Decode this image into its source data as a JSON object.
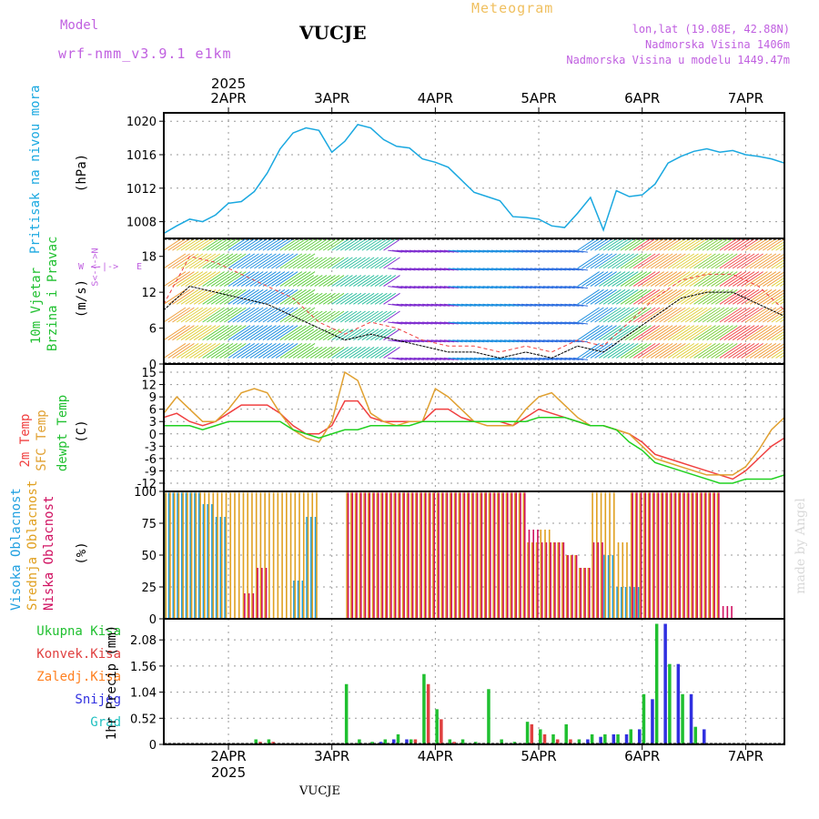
{
  "header": {
    "model_label": "Model",
    "model_name": "wrf-nmm_v3.9.1 e1km",
    "location_title": "VUCJE",
    "product": "Meteogram",
    "coords": "lon,lat (19.08E, 42.88N)",
    "elevation": "Nadmorska Visina 1406m",
    "model_elevation": "Nadmorska Visina u modelu 1449.47m",
    "credit": "made by Angel",
    "bottom_title": "VUCJE"
  },
  "time_axis": {
    "year": "2025",
    "day_labels": [
      "2APR",
      "3APR",
      "4APR",
      "5APR",
      "6APR",
      "7APR"
    ]
  },
  "colors": {
    "pressure": "#1aa8e0",
    "wind_speed": "#000000",
    "temp_2m": "#f04040",
    "temp_sfc": "#e0a030",
    "dewpoint": "#20d020",
    "cloud_high": "#20a0e0",
    "cloud_mid": "#e0a020",
    "cloud_low": "#d01060",
    "precip_total": "#20c030",
    "precip_conv": "#e04040",
    "precip_frozen": "#ff8020",
    "precip_snow": "#3030e0",
    "precip_hail": "#20c0c0",
    "wind_compass": "#c060e0"
  },
  "panel_labels": {
    "pressure_name": "Pritisak na nivou mora",
    "pressure_unit": "(hPa)",
    "wind_name_1": "10m Vjetar",
    "wind_name_2": "Brzina i Pravac",
    "wind_unit": "(m/s)",
    "compass_n": "N",
    "compass_w": "W",
    "compass_e": "E",
    "compass_s": "S",
    "temp_2m": "2m Temp",
    "temp_sfc": "SFC Temp",
    "dewpoint": "dewpt Temp",
    "temp_unit": "(C)",
    "cloud_high": "Visoka Oblacnost",
    "cloud_mid": "Srednja Oblacnost",
    "cloud_low": "Niska Oblacnost",
    "cloud_unit": "(%)",
    "precip_total": "Ukupna Kisa",
    "precip_conv": "Konvek.Kisa",
    "precip_frozen": "Zaledj.Kisa",
    "precip_snow": "Snijeg",
    "precip_hail": "Grad",
    "precip_unit": "1hr Precip (mm)"
  },
  "chart_data": [
    {
      "type": "line",
      "name": "pressure",
      "ylim": [
        1006,
        1021
      ],
      "yticks": [
        "1008",
        "1012",
        "1016",
        "1020"
      ],
      "x_hours": [
        0,
        3,
        6,
        9,
        12,
        15,
        18,
        21,
        24,
        27,
        30,
        33,
        36,
        39,
        42,
        45,
        48,
        51,
        54,
        57,
        60,
        63,
        66,
        69,
        72,
        75,
        78,
        81,
        84,
        87,
        90,
        93,
        96,
        99,
        102,
        105,
        108,
        111,
        114,
        117,
        120,
        123,
        126,
        129,
        132,
        135,
        138,
        141,
        144
      ],
      "series": [
        {
          "values": [
            1006.6,
            1007.5,
            1008.3,
            1008.0,
            1008.8,
            1010.2,
            1010.4,
            1011.6,
            1013.8,
            1016.7,
            1018.6,
            1019.2,
            1018.9,
            1016.3,
            1017.6,
            1019.6,
            1019.2,
            1017.8,
            1017.0,
            1016.8,
            1015.5,
            1015.1,
            1014.5,
            1013.0,
            1011.5,
            1011.0,
            1010.5,
            1008.6,
            1008.5,
            1008.3,
            1007.5,
            1007.3,
            1009.0,
            1010.9,
            1007.0,
            1011.7,
            1011.0,
            1011.2,
            1012.5,
            1015.0,
            1015.8,
            1016.4,
            1016.7,
            1016.3,
            1016.5,
            1016.0,
            1015.8,
            1015.5,
            1015.0
          ]
        }
      ]
    },
    {
      "type": "line",
      "name": "wind_speed",
      "ylim": [
        0,
        21
      ],
      "yticks": [
        "0",
        "6",
        "12",
        "18"
      ],
      "x_hours": [
        0,
        6,
        12,
        18,
        24,
        30,
        36,
        42,
        48,
        54,
        60,
        66,
        72,
        78,
        84,
        90,
        96,
        102,
        108,
        114,
        120,
        126,
        132,
        138,
        144
      ],
      "series": [
        {
          "name": "speed",
          "values": [
            9,
            13,
            12,
            11,
            10,
            8,
            6,
            4,
            5,
            4,
            3,
            2,
            2,
            1,
            2,
            1,
            3,
            2,
            5,
            8,
            11,
            12,
            12,
            10,
            8
          ]
        },
        {
          "name": "gust",
          "values": [
            10,
            18,
            17,
            15,
            13,
            11,
            7,
            5,
            7,
            6,
            4,
            3,
            3,
            2,
            3,
            2,
            4,
            3,
            7,
            11,
            14,
            15,
            15,
            13,
            9
          ]
        }
      ]
    },
    {
      "type": "line",
      "name": "temperature",
      "ylim": [
        -14,
        17
      ],
      "yticks": [
        "-12",
        "-9",
        "-6",
        "-3",
        "0",
        "3",
        "6",
        "9",
        "12",
        "15"
      ],
      "x_hours": [
        0,
        3,
        6,
        9,
        12,
        15,
        18,
        21,
        24,
        27,
        30,
        33,
        36,
        39,
        42,
        45,
        48,
        51,
        54,
        57,
        60,
        63,
        66,
        69,
        72,
        75,
        78,
        81,
        84,
        87,
        90,
        93,
        96,
        99,
        102,
        105,
        108,
        111,
        114,
        117,
        120,
        123,
        126,
        129,
        132,
        135,
        138,
        141,
        144
      ],
      "series": [
        {
          "name": "2m Temp",
          "values": [
            4,
            5,
            3,
            2,
            3,
            5,
            7,
            7,
            7,
            5,
            2,
            0,
            0,
            2,
            8,
            8,
            4,
            3,
            3,
            3,
            3,
            6,
            6,
            4,
            3,
            3,
            3,
            2,
            4,
            6,
            5,
            4,
            3,
            2,
            2,
            1,
            0,
            -2,
            -5,
            -6,
            -7,
            -8,
            -9,
            -10,
            -11,
            -9,
            -6,
            -3,
            -1
          ]
        },
        {
          "name": "SFC Temp",
          "values": [
            5,
            9,
            6,
            3,
            3,
            6,
            10,
            11,
            10,
            5,
            1,
            -1,
            -2,
            3,
            15,
            13,
            5,
            3,
            2,
            3,
            3,
            11,
            9,
            6,
            3,
            2,
            2,
            2,
            6,
            9,
            10,
            7,
            4,
            2,
            2,
            1,
            0,
            -3,
            -6,
            -7,
            -8,
            -9,
            -10,
            -10,
            -10,
            -8,
            -4,
            1,
            4
          ]
        },
        {
          "name": "dewpt Temp",
          "values": [
            2,
            2,
            2,
            1,
            2,
            3,
            3,
            3,
            3,
            3,
            1,
            0,
            -1,
            0,
            1,
            1,
            2,
            2,
            2,
            2,
            3,
            3,
            3,
            3,
            3,
            3,
            3,
            3,
            3,
            4,
            4,
            4,
            3,
            2,
            2,
            1,
            -2,
            -4,
            -7,
            -8,
            -9,
            -10,
            -11,
            -12,
            -12,
            -11,
            -11,
            -11,
            -10
          ]
        }
      ]
    },
    {
      "type": "bar",
      "name": "clouds",
      "ylim": [
        0,
        100
      ],
      "yticks": [
        "0",
        "25",
        "50",
        "75",
        "100"
      ],
      "x_hours": [
        0,
        3,
        6,
        9,
        12,
        15,
        18,
        21,
        24,
        27,
        30,
        33,
        36,
        39,
        42,
        45,
        48,
        51,
        54,
        57,
        60,
        63,
        66,
        69,
        72,
        75,
        78,
        81,
        84,
        87,
        90,
        93,
        96,
        99,
        102,
        105,
        108,
        111,
        114,
        117,
        120,
        123,
        126,
        129,
        132,
        135,
        138,
        141,
        144
      ],
      "series": [
        {
          "name": "Visoka Oblacnost",
          "values": [
            99,
            99,
            99,
            90,
            80,
            0,
            0,
            0,
            0,
            0,
            30,
            80,
            0,
            0,
            0,
            0,
            0,
            0,
            0,
            0,
            0,
            0,
            0,
            0,
            0,
            0,
            0,
            0,
            0,
            0,
            0,
            0,
            5,
            0,
            50,
            25,
            25,
            0,
            0,
            0,
            0,
            0,
            0,
            0,
            0,
            0,
            0,
            0,
            0
          ]
        },
        {
          "name": "Srednja Oblacnost",
          "values": [
            99,
            99,
            99,
            99,
            99,
            99,
            99,
            99,
            99,
            99,
            99,
            99,
            0,
            0,
            99,
            99,
            99,
            99,
            99,
            99,
            99,
            99,
            99,
            99,
            99,
            99,
            99,
            99,
            60,
            70,
            60,
            50,
            40,
            99,
            99,
            60,
            99,
            99,
            99,
            99,
            99,
            99,
            99,
            0,
            0,
            0,
            0,
            0,
            0
          ]
        },
        {
          "name": "Niska Oblacnost",
          "values": [
            0,
            0,
            0,
            0,
            0,
            0,
            20,
            40,
            0,
            0,
            0,
            0,
            0,
            5,
            99,
            99,
            99,
            99,
            99,
            99,
            99,
            99,
            99,
            99,
            99,
            99,
            99,
            99,
            70,
            60,
            60,
            50,
            40,
            60,
            0,
            0,
            99,
            99,
            99,
            99,
            99,
            99,
            99,
            10,
            0,
            0,
            0,
            0,
            0
          ]
        }
      ]
    },
    {
      "type": "bar",
      "name": "precipitation",
      "ylim": [
        0,
        2.5
      ],
      "yticks": [
        "0",
        "0.52",
        "1.04",
        "1.56",
        "2.08"
      ],
      "x_hours": [
        0,
        3,
        6,
        9,
        12,
        15,
        18,
        21,
        24,
        27,
        30,
        33,
        36,
        39,
        42,
        45,
        48,
        51,
        54,
        57,
        60,
        63,
        66,
        69,
        72,
        75,
        78,
        81,
        84,
        87,
        90,
        93,
        96,
        99,
        102,
        105,
        108,
        111,
        114,
        117,
        120,
        123,
        126,
        129,
        132,
        135,
        138,
        141,
        144
      ],
      "series": [
        {
          "name": "Ukupna Kisa",
          "values": [
            0,
            0,
            0,
            0,
            0,
            0,
            0,
            0.1,
            0.1,
            0,
            0,
            0,
            0,
            0,
            1.2,
            0.1,
            0.05,
            0.1,
            0.2,
            0.1,
            1.4,
            0.7,
            0.1,
            0.1,
            0.05,
            1.1,
            0.1,
            0.05,
            0.45,
            0.3,
            0.2,
            0.4,
            0.1,
            0.2,
            0.2,
            0.2,
            0.3,
            1.0,
            2.4,
            1.6,
            1.0,
            0.35,
            0,
            0,
            0,
            0,
            0,
            0,
            0
          ]
        },
        {
          "name": "Konvek.Kisa",
          "values": [
            0,
            0,
            0,
            0,
            0,
            0,
            0,
            0.05,
            0.05,
            0,
            0,
            0,
            0,
            0,
            0,
            0,
            0,
            0,
            0,
            0.1,
            1.2,
            0.5,
            0.05,
            0,
            0,
            0,
            0,
            0,
            0.4,
            0.2,
            0.1,
            0.1,
            0,
            0,
            0,
            0,
            0,
            0,
            0,
            0,
            0,
            0,
            0,
            0,
            0,
            0,
            0,
            0,
            0
          ]
        },
        {
          "name": "Snijeg",
          "values": [
            0,
            0,
            0,
            0,
            0,
            0,
            0,
            0,
            0,
            0,
            0,
            0,
            0,
            0,
            0,
            0,
            0.05,
            0.1,
            0.1,
            0,
            0,
            0,
            0,
            0,
            0,
            0,
            0,
            0,
            0,
            0,
            0,
            0,
            0.1,
            0.15,
            0.2,
            0.2,
            0.3,
            0.9,
            2.4,
            1.6,
            1.0,
            0.3,
            0,
            0,
            0,
            0,
            0,
            0,
            0
          ]
        }
      ]
    }
  ]
}
